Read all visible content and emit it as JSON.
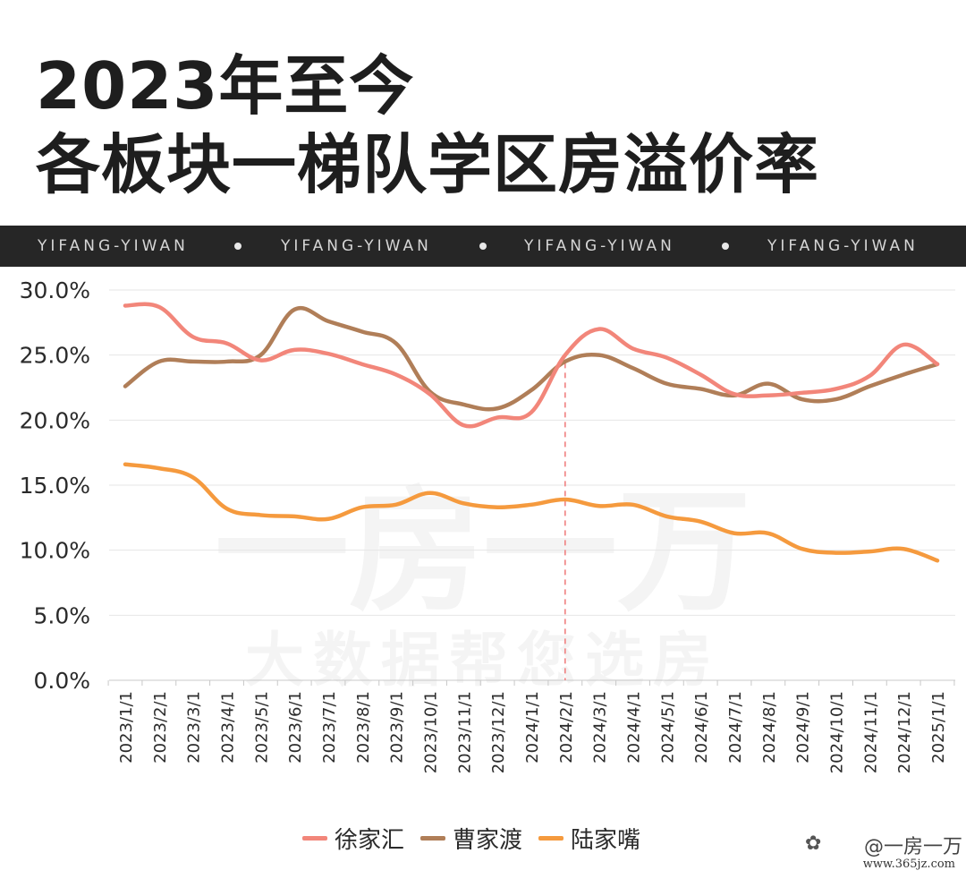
{
  "title_lines": [
    "2023年至今",
    "各板块一梯队学区房溢价率"
  ],
  "banner": {
    "items": [
      "YIFANG-YIWAN",
      "YIFANG-YIWAN",
      "YIFANG-YIWAN",
      "YIFANG-YIWAN"
    ]
  },
  "watermark": {
    "brand": "一房一万",
    "slogan": "大数据帮您选房"
  },
  "credit": {
    "name": "@一房一万",
    "url": "www.365jz.com",
    "icon": "paw-icon"
  },
  "chart_data": {
    "type": "line",
    "title": "各板块一梯队学区房溢价率",
    "x": [
      "2023/1/1",
      "2023/2/1",
      "2023/3/1",
      "2023/4/1",
      "2023/5/1",
      "2023/6/1",
      "2023/7/1",
      "2023/8/1",
      "2023/9/1",
      "2023/10/1",
      "2023/11/1",
      "2023/12/1",
      "2024/1/1",
      "2024/2/1",
      "2024/3/1",
      "2024/4/1",
      "2024/5/1",
      "2024/6/1",
      "2024/7/1",
      "2024/8/1",
      "2024/9/1",
      "2024/10/1",
      "2024/11/1",
      "2024/12/1",
      "2025/1/1"
    ],
    "y_ticks": [
      "0.0%",
      "5.0%",
      "10.0%",
      "15.0%",
      "20.0%",
      "25.0%",
      "30.0%"
    ],
    "ylim": [
      0,
      30
    ],
    "grid": true,
    "legend_position": "bottom",
    "reference_line": {
      "x": "2024/2/1",
      "style": "dashed",
      "color": "#f08080"
    },
    "series": [
      {
        "name": "徐家汇",
        "color": "#f2867a",
        "values": [
          28.8,
          28.7,
          26.4,
          25.9,
          24.6,
          25.4,
          25.1,
          24.3,
          23.5,
          22.0,
          19.6,
          20.2,
          20.6,
          25.0,
          27.0,
          25.5,
          24.8,
          23.5,
          22.0,
          21.9,
          22.1,
          22.4,
          23.4,
          25.8,
          24.3
        ]
      },
      {
        "name": "曹家渡",
        "color": "#b07e58",
        "values": [
          22.6,
          24.5,
          24.5,
          24.5,
          25.0,
          28.5,
          27.6,
          26.8,
          25.9,
          22.2,
          21.2,
          20.9,
          22.3,
          24.5,
          25.0,
          24.0,
          22.8,
          22.4,
          21.9,
          22.8,
          21.6,
          21.6,
          22.6,
          23.5,
          24.3
        ]
      },
      {
        "name": "陆家嘴",
        "color": "#f59a3e",
        "values": [
          16.6,
          16.3,
          15.6,
          13.2,
          12.7,
          12.6,
          12.4,
          13.3,
          13.5,
          14.4,
          13.6,
          13.3,
          13.5,
          13.9,
          13.4,
          13.5,
          12.6,
          12.2,
          11.3,
          11.3,
          10.1,
          9.8,
          9.9,
          10.1,
          9.2
        ]
      }
    ]
  }
}
